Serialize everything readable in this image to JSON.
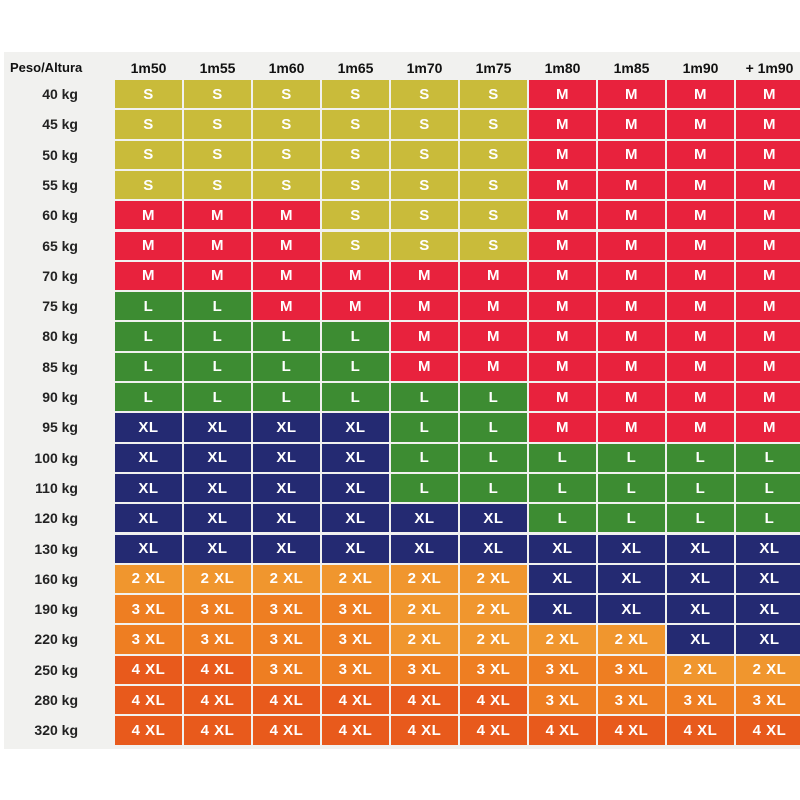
{
  "chart_data": {
    "type": "table",
    "corner_label": "Peso/Altura",
    "columns": [
      "1m50",
      "1m55",
      "1m60",
      "1m65",
      "1m70",
      "1m75",
      "1m80",
      "1m85",
      "1m90",
      "+ 1m90"
    ],
    "rows": [
      "40 kg",
      "45 kg",
      "50 kg",
      "55 kg",
      "60 kg",
      "65 kg",
      "70 kg",
      "75 kg",
      "80 kg",
      "85 kg",
      "90 kg",
      "95 kg",
      "100 kg",
      "110 kg",
      "120 kg",
      "130 kg",
      "160 kg",
      "190 kg",
      "220 kg",
      "250 kg",
      "280 kg",
      "320 kg"
    ],
    "cells": [
      [
        "S",
        "S",
        "S",
        "S",
        "S",
        "S",
        "M",
        "M",
        "M",
        "M"
      ],
      [
        "S",
        "S",
        "S",
        "S",
        "S",
        "S",
        "M",
        "M",
        "M",
        "M"
      ],
      [
        "S",
        "S",
        "S",
        "S",
        "S",
        "S",
        "M",
        "M",
        "M",
        "M"
      ],
      [
        "S",
        "S",
        "S",
        "S",
        "S",
        "S",
        "M",
        "M",
        "M",
        "M"
      ],
      [
        "M",
        "M",
        "M",
        "S",
        "S",
        "S",
        "M",
        "M",
        "M",
        "M"
      ],
      [
        "M",
        "M",
        "M",
        "S",
        "S",
        "S",
        "M",
        "M",
        "M",
        "M"
      ],
      [
        "M",
        "M",
        "M",
        "M",
        "M",
        "M",
        "M",
        "M",
        "M",
        "M"
      ],
      [
        "L",
        "L",
        "M",
        "M",
        "M",
        "M",
        "M",
        "M",
        "M",
        "M"
      ],
      [
        "L",
        "L",
        "L",
        "L",
        "M",
        "M",
        "M",
        "M",
        "M",
        "M"
      ],
      [
        "L",
        "L",
        "L",
        "L",
        "M",
        "M",
        "M",
        "M",
        "M",
        "M"
      ],
      [
        "L",
        "L",
        "L",
        "L",
        "L",
        "L",
        "M",
        "M",
        "M",
        "M"
      ],
      [
        "XL",
        "XL",
        "XL",
        "XL",
        "L",
        "L",
        "M",
        "M",
        "M",
        "M"
      ],
      [
        "XL",
        "XL",
        "XL",
        "XL",
        "L",
        "L",
        "L",
        "L",
        "L",
        "L"
      ],
      [
        "XL",
        "XL",
        "XL",
        "XL",
        "L",
        "L",
        "L",
        "L",
        "L",
        "L"
      ],
      [
        "XL",
        "XL",
        "XL",
        "XL",
        "XL",
        "XL",
        "L",
        "L",
        "L",
        "L"
      ],
      [
        "XL",
        "XL",
        "XL",
        "XL",
        "XL",
        "XL",
        "XL",
        "XL",
        "XL",
        "XL"
      ],
      [
        "2 XL",
        "2 XL",
        "2 XL",
        "2 XL",
        "2 XL",
        "2 XL",
        "XL",
        "XL",
        "XL",
        "XL"
      ],
      [
        "3 XL",
        "3 XL",
        "3 XL",
        "3 XL",
        "2 XL",
        "2 XL",
        "XL",
        "XL",
        "XL",
        "XL"
      ],
      [
        "3 XL",
        "3 XL",
        "3 XL",
        "3 XL",
        "2 XL",
        "2 XL",
        "2 XL",
        "2 XL",
        "XL",
        "XL"
      ],
      [
        "4 XL",
        "4 XL",
        "3 XL",
        "3 XL",
        "3 XL",
        "3 XL",
        "3 XL",
        "3 XL",
        "2 XL",
        "2 XL"
      ],
      [
        "4 XL",
        "4 XL",
        "4 XL",
        "4 XL",
        "4 XL",
        "4 XL",
        "3 XL",
        "3 XL",
        "3 XL",
        "3 XL"
      ],
      [
        "4 XL",
        "4 XL",
        "4 XL",
        "4 XL",
        "4 XL",
        "4 XL",
        "4 XL",
        "4 XL",
        "4 XL",
        "4 XL"
      ]
    ],
    "size_colors": {
      "S": "#c9bb3a",
      "M": "#e8223d",
      "L": "#3d8c32",
      "XL": "#242a72",
      "2 XL": "#f0962e",
      "3 XL": "#ee7e22",
      "4 XL": "#e85a1c"
    },
    "cell_border_color": "#f3f1e8",
    "page_background": "#f1f1ef"
  }
}
